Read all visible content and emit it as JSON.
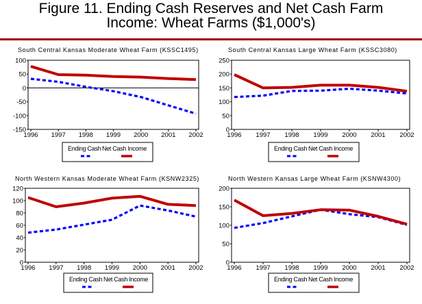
{
  "figure": {
    "title_line1": "Figure 11. Ending Cash Reserves and Net Cash Farm",
    "title_line2": "Income:  Wheat Farms ($1,000's)",
    "rule_color": "#a00000"
  },
  "colors": {
    "ending_cash": "#0000ff",
    "net_cash_income": "#c00000"
  },
  "chart_data": [
    {
      "type": "line",
      "title": "South Central Kansas Moderate Wheat Farm (KSSC1495)",
      "xlabel": "",
      "ylabel": "",
      "x": [
        1996,
        1997,
        1998,
        1999,
        2000,
        2001,
        2002
      ],
      "xticks": [
        "1996",
        "1997",
        "1998",
        "1999",
        "2000",
        "2001",
        "2002"
      ],
      "yticks": [
        "100",
        "50",
        "0",
        "-50",
        "-100",
        "-150"
      ],
      "ylim": [
        -150,
        100
      ],
      "zero_line": true,
      "legend": {
        "position": "bottom",
        "entries": [
          "Ending Cash",
          "Net Cash Income"
        ]
      },
      "series": [
        {
          "name": "Ending Cash",
          "style": "dashed",
          "values": [
            33,
            22,
            4,
            -12,
            -33,
            -63,
            -93
          ]
        },
        {
          "name": "Net Cash Income",
          "style": "solid",
          "values": [
            78,
            48,
            46,
            41,
            39,
            34,
            30
          ]
        }
      ]
    },
    {
      "type": "line",
      "title": "South Central Kansas Large Wheat Farm (KSSC3080)",
      "xlabel": "",
      "ylabel": "",
      "x": [
        1996,
        1997,
        1998,
        1999,
        2000,
        2001,
        2002
      ],
      "xticks": [
        "1996",
        "1997",
        "1998",
        "1999",
        "2000",
        "2001",
        "2002"
      ],
      "yticks": [
        "250",
        "200",
        "150",
        "100",
        "50",
        "0"
      ],
      "ylim": [
        0,
        250
      ],
      "zero_line": false,
      "legend": {
        "position": "bottom",
        "entries": [
          "Ending Cash",
          "Net Cash Income"
        ]
      },
      "series": [
        {
          "name": "Ending Cash",
          "style": "dashed",
          "values": [
            117,
            122,
            139,
            140,
            147,
            140,
            130
          ]
        },
        {
          "name": "Net Cash Income",
          "style": "solid",
          "values": [
            198,
            150,
            152,
            160,
            160,
            152,
            138
          ]
        }
      ]
    },
    {
      "type": "line",
      "title": "North Western Kansas Moderate Wheat Farm (KSNW2325)",
      "xlabel": "",
      "ylabel": "",
      "x": [
        1996,
        1997,
        1998,
        1999,
        2000,
        2001,
        2002
      ],
      "xticks": [
        "1996",
        "1997",
        "1998",
        "1999",
        "2000",
        "2001",
        "2002"
      ],
      "yticks": [
        "120",
        "100",
        "80",
        "60",
        "40",
        "20",
        "0"
      ],
      "ylim": [
        0,
        120
      ],
      "zero_line": false,
      "legend": {
        "position": "bottom",
        "entries": [
          "Ending Cash",
          "Net Cash Income"
        ]
      },
      "series": [
        {
          "name": "Ending Cash",
          "style": "dashed",
          "values": [
            48,
            53,
            61,
            69,
            92,
            84,
            74
          ]
        },
        {
          "name": "Net Cash Income",
          "style": "solid",
          "values": [
            105,
            90,
            96,
            104,
            107,
            94,
            92
          ]
        }
      ]
    },
    {
      "type": "line",
      "title": "North Western Kansas Large Wheat Farm (KSNW4300)",
      "xlabel": "",
      "ylabel": "",
      "x": [
        1996,
        1997,
        1998,
        1999,
        2000,
        2001,
        2002
      ],
      "xticks": [
        "1996",
        "1997",
        "1998",
        "1999",
        "2000",
        "2001",
        "2002"
      ],
      "yticks": [
        "200",
        "150",
        "100",
        "50",
        "0"
      ],
      "ylim": [
        0,
        200
      ],
      "zero_line": false,
      "legend": {
        "position": "bottom",
        "entries": [
          "Ending Cash",
          "Net Cash Income"
        ]
      },
      "series": [
        {
          "name": "Ending Cash",
          "style": "dashed",
          "values": [
            93,
            106,
            124,
            142,
            130,
            122,
            101
          ]
        },
        {
          "name": "Net Cash Income",
          "style": "solid",
          "values": [
            168,
            126,
            132,
            142,
            141,
            124,
            103
          ]
        }
      ]
    }
  ]
}
